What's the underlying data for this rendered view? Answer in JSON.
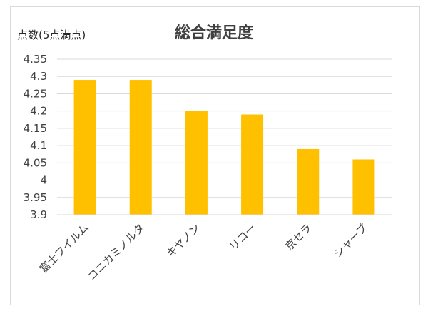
{
  "chart_data": {
    "type": "bar",
    "title": "総合満足度",
    "ylabel": "点数(5点満点)",
    "xlabel": "",
    "categories": [
      "富士フイルム",
      "コニカミノルタ",
      "キヤノン",
      "リコー",
      "京セラ",
      "シャープ"
    ],
    "values": [
      4.29,
      4.29,
      4.2,
      4.19,
      4.09,
      4.06
    ],
    "ylim": [
      3.9,
      4.35
    ],
    "yticks": [
      "3.9",
      "3.95",
      "4",
      "4.05",
      "4.1",
      "4.15",
      "4.2",
      "4.25",
      "4.3",
      "4.35"
    ],
    "grid": true,
    "bar_color": "#FFC000",
    "grid_color": "#D9D9D9"
  }
}
